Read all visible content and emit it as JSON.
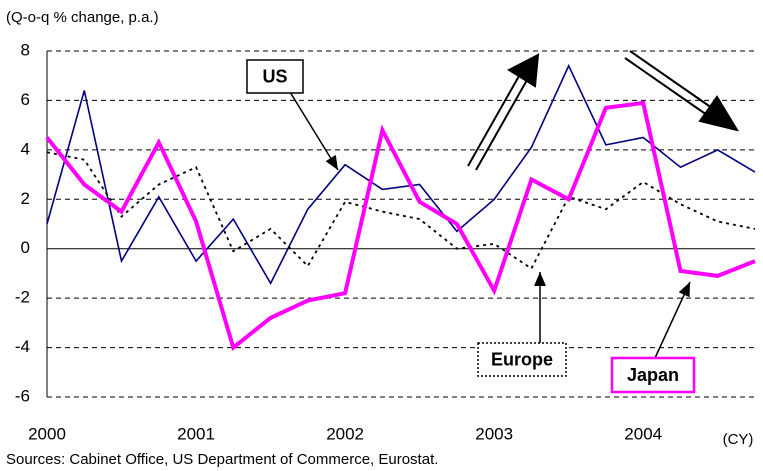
{
  "chart_data": {
    "type": "line",
    "y_axis_label": "(Q-o-q % change, p.a.)",
    "x_axis_label": "(CY)",
    "source": "Sources: Cabinet Office, US Department of Commerce, Eurostat.",
    "categories": [
      "2000",
      null,
      null,
      null,
      "2001",
      null,
      null,
      null,
      "2002",
      null,
      null,
      null,
      "2003",
      null,
      null,
      null,
      "2004",
      null,
      null,
      null
    ],
    "series": [
      {
        "name": "US",
        "color": "#000080",
        "values": [
          1.0,
          6.4,
          -0.5,
          2.1,
          -0.5,
          1.2,
          -1.4,
          1.6,
          3.4,
          2.4,
          2.6,
          0.7,
          2.0,
          4.1,
          7.4,
          4.2,
          4.5,
          3.3,
          4.0,
          3.1
        ]
      },
      {
        "name": "Europe",
        "color": "#000000",
        "values": [
          3.9,
          3.6,
          1.3,
          2.6,
          3.3,
          -0.1,
          0.8,
          -0.7,
          1.9,
          1.5,
          1.2,
          0.0,
          0.2,
          -0.8,
          2.1,
          1.6,
          2.7,
          1.8,
          1.1,
          0.8
        ]
      },
      {
        "name": "Japan",
        "color": "#ff00ff",
        "values": [
          4.5,
          2.6,
          1.5,
          4.3,
          1.1,
          -4.0,
          -2.8,
          -2.1,
          -1.8,
          4.8,
          1.9,
          1.0,
          -1.7,
          2.8,
          2.0,
          5.7,
          5.9,
          -0.9,
          -1.1,
          -0.5
        ]
      }
    ],
    "ylim": [
      -6,
      8
    ],
    "yticks": [
      -6,
      -4,
      -2,
      0,
      2,
      4,
      6,
      8
    ],
    "grid": true
  }
}
